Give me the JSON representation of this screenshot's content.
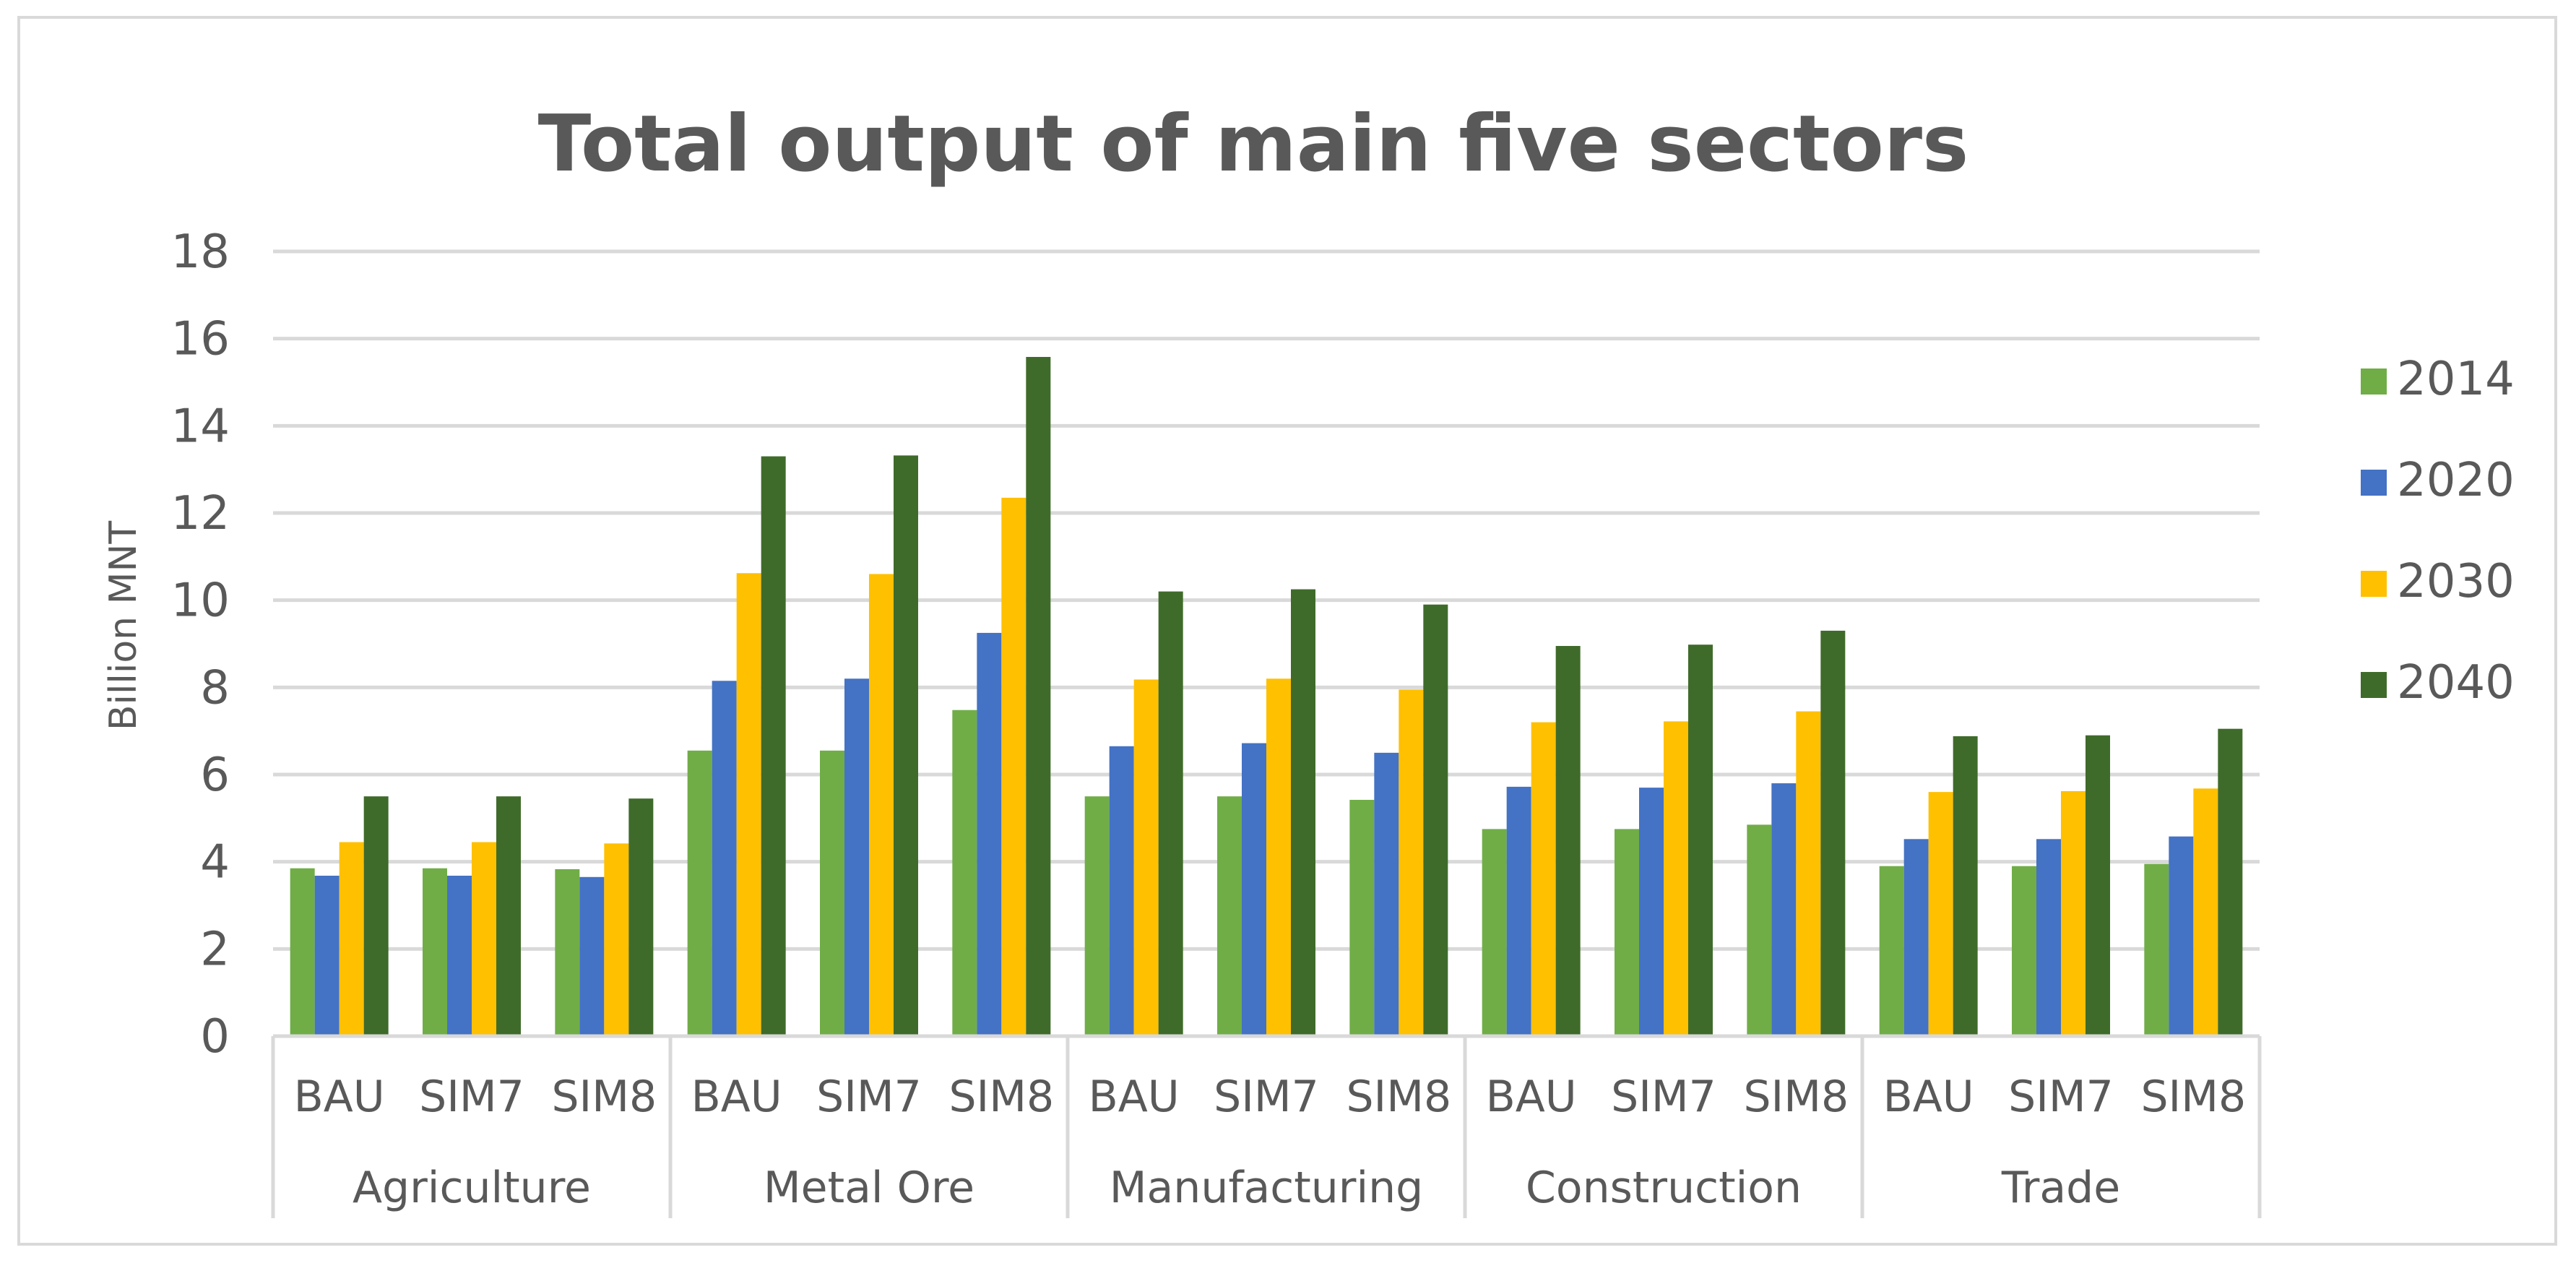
{
  "chart_data": {
    "type": "bar",
    "title": "Total output of main five sectors",
    "xlabel": "",
    "ylabel": "Billion MNT",
    "ylim": [
      0,
      18
    ],
    "yticks": [
      "0",
      "2",
      "4",
      "6",
      "8",
      "10",
      "12",
      "14",
      "16",
      "18"
    ],
    "grid": true,
    "legend_position": "right",
    "colors": {
      "2014": "#70ad47",
      "2020": "#4472c4",
      "2030": "#ffc000",
      "2040": "#3f6b2a",
      "grid": "#d9d9d9",
      "text": "#595959",
      "title": "#595959"
    },
    "groups": [
      {
        "name": "Agriculture",
        "scenarios": [
          "BAU",
          "SIM7",
          "SIM8"
        ]
      },
      {
        "name": "Metal Ore",
        "scenarios": [
          "BAU",
          "SIM7",
          "SIM8"
        ]
      },
      {
        "name": "Manufacturing",
        "scenarios": [
          "BAU",
          "SIM7",
          "SIM8"
        ]
      },
      {
        "name": "Construction",
        "scenarios": [
          "BAU",
          "SIM7",
          "SIM8"
        ]
      },
      {
        "name": "Trade",
        "scenarios": [
          "BAU",
          "SIM7",
          "SIM8"
        ]
      }
    ],
    "series": [
      {
        "name": "2014",
        "values": [
          3.85,
          3.85,
          3.83,
          6.55,
          6.55,
          7.48,
          5.5,
          5.5,
          5.42,
          4.75,
          4.75,
          4.85,
          3.9,
          3.9,
          3.95
        ]
      },
      {
        "name": "2020",
        "values": [
          3.68,
          3.68,
          3.65,
          8.15,
          8.2,
          9.25,
          6.65,
          6.72,
          6.5,
          5.72,
          5.7,
          5.8,
          4.52,
          4.52,
          4.58
        ]
      },
      {
        "name": "2030",
        "values": [
          4.45,
          4.45,
          4.42,
          10.62,
          10.6,
          12.35,
          8.18,
          8.2,
          7.95,
          7.2,
          7.22,
          7.45,
          5.6,
          5.62,
          5.68
        ]
      },
      {
        "name": "2040",
        "values": [
          5.5,
          5.5,
          5.45,
          13.3,
          13.32,
          15.58,
          10.2,
          10.25,
          9.9,
          8.95,
          8.98,
          9.3,
          6.88,
          6.9,
          7.05
        ]
      }
    ]
  }
}
